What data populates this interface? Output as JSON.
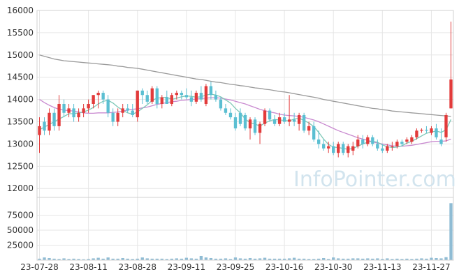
{
  "watermark": "InfoPointer.com",
  "colors": {
    "up": "#e23b3b",
    "down": "#5bbfd2",
    "ma5": "#7cc8b6",
    "ma20": "#c98ad0",
    "ma60": "#9a9a9a",
    "volume": "#8fbcd4",
    "grid": "#e6e6e6",
    "axis_text": "#333333"
  },
  "chart_data": [
    {
      "type": "candlestick",
      "title": "",
      "ylim": [
        11800,
        16000
      ],
      "yticks": [
        12000,
        12500,
        13000,
        13500,
        14000,
        14500,
        15000,
        15500,
        16000
      ],
      "x_tick_labels": [
        "23-07-28",
        "23-08-11",
        "23-08-28",
        "23-09-11",
        "23-09-25",
        "23-10-16",
        "23-10-30",
        "23-11-13",
        "23-11-27"
      ],
      "x_tick_indices": [
        0,
        10,
        20,
        30,
        40,
        50,
        60,
        70,
        80
      ],
      "ohlc": [
        [
          13200,
          13600,
          12800,
          13400
        ],
        [
          13500,
          13600,
          13200,
          13300
        ],
        [
          13300,
          13800,
          13200,
          13700
        ],
        [
          13700,
          13800,
          13300,
          13400
        ],
        [
          13400,
          14100,
          13300,
          13900
        ],
        [
          13900,
          14000,
          13600,
          13700
        ],
        [
          13700,
          13900,
          13600,
          13800
        ],
        [
          13800,
          13900,
          13500,
          13600
        ],
        [
          13600,
          13800,
          13500,
          13700
        ],
        [
          13700,
          13900,
          13600,
          13800
        ],
        [
          13800,
          14000,
          13700,
          13900
        ],
        [
          13900,
          14100,
          13800,
          14100
        ],
        [
          14100,
          14200,
          13800,
          14150
        ],
        [
          14150,
          14200,
          13900,
          14000
        ],
        [
          14000,
          14100,
          13600,
          13700
        ],
        [
          13700,
          13800,
          13400,
          13500
        ],
        [
          13500,
          13800,
          13400,
          13700
        ],
        [
          13700,
          13900,
          13600,
          13800
        ],
        [
          13800,
          13900,
          13700,
          13750
        ],
        [
          13750,
          13900,
          13600,
          13650
        ],
        [
          13600,
          14200,
          13500,
          14200
        ],
        [
          14200,
          14250,
          13900,
          14100
        ],
        [
          14100,
          14200,
          13900,
          13950
        ],
        [
          13950,
          14300,
          13900,
          14250
        ],
        [
          14250,
          14300,
          13800,
          13900
        ],
        [
          13900,
          14100,
          13800,
          14050
        ],
        [
          14050,
          14200,
          13900,
          13900
        ],
        [
          13900,
          14150,
          13850,
          14100
        ],
        [
          14100,
          14200,
          14000,
          14150
        ],
        [
          14150,
          14200,
          14000,
          14100
        ],
        [
          14100,
          14250,
          14000,
          14050
        ],
        [
          14050,
          14200,
          13850,
          13950
        ],
        [
          13950,
          14200,
          13900,
          14150
        ],
        [
          14150,
          14300,
          13950,
          14000
        ],
        [
          13900,
          14350,
          13850,
          14300
        ],
        [
          14300,
          14400,
          14000,
          14100
        ],
        [
          14100,
          14200,
          13950,
          14000
        ],
        [
          14000,
          14050,
          13750,
          13800
        ],
        [
          13800,
          13900,
          13650,
          13700
        ],
        [
          13700,
          13800,
          13550,
          13600
        ],
        [
          13600,
          13700,
          13300,
          13350
        ],
        [
          13700,
          13800,
          13400,
          13450
        ],
        [
          13650,
          13700,
          13300,
          13350
        ],
        [
          13350,
          13600,
          13100,
          13550
        ],
        [
          13550,
          13600,
          13200,
          13250
        ],
        [
          13250,
          13500,
          13000,
          13450
        ],
        [
          13450,
          13800,
          13400,
          13750
        ],
        [
          13750,
          13800,
          13500,
          13550
        ],
        [
          13550,
          13650,
          13400,
          13450
        ],
        [
          13450,
          13700,
          13400,
          13600
        ],
        [
          13600,
          13700,
          13450,
          13500
        ],
        [
          13500,
          14100,
          13400,
          13550
        ],
        [
          13550,
          13700,
          13400,
          13500
        ],
        [
          13450,
          13700,
          13300,
          13650
        ],
        [
          13650,
          13700,
          13250,
          13300
        ],
        [
          13300,
          13500,
          13200,
          13400
        ],
        [
          13400,
          13500,
          13050,
          13100
        ],
        [
          13100,
          13300,
          12900,
          13000
        ],
        [
          13000,
          13100,
          12850,
          12900
        ],
        [
          12900,
          13050,
          12800,
          12950
        ],
        [
          12950,
          13050,
          12750,
          12800
        ],
        [
          12800,
          13050,
          12700,
          13000
        ],
        [
          13000,
          13050,
          12750,
          12800
        ],
        [
          12800,
          13000,
          12700,
          12950
        ],
        [
          12850,
          13050,
          12750,
          12950
        ],
        [
          12950,
          13200,
          12900,
          13100
        ],
        [
          13100,
          13200,
          12900,
          13000
        ],
        [
          13000,
          13200,
          12950,
          13150
        ],
        [
          13150,
          13200,
          12950,
          13000
        ],
        [
          13000,
          13100,
          12850,
          12900
        ],
        [
          12900,
          13000,
          12800,
          12850
        ],
        [
          12850,
          13000,
          12800,
          12950
        ],
        [
          12950,
          13050,
          12850,
          12950
        ],
        [
          12950,
          13100,
          12900,
          13050
        ],
        [
          13050,
          13100,
          12950,
          13000
        ],
        [
          13050,
          13150,
          13000,
          13100
        ],
        [
          13050,
          13200,
          13000,
          13150
        ],
        [
          13150,
          13350,
          13100,
          13300
        ],
        [
          13300,
          13350,
          13250,
          13320
        ],
        [
          13320,
          13400,
          13250,
          13300
        ],
        [
          13250,
          13400,
          13200,
          13350
        ],
        [
          13350,
          13450,
          13100,
          13150
        ],
        [
          13100,
          13350,
          12950,
          13000
        ],
        [
          13150,
          13700,
          13050,
          13650
        ],
        [
          13800,
          15750,
          13800,
          14450
        ]
      ],
      "ma5": [
        13320,
        13380,
        13440,
        13500,
        13560,
        13620,
        13680,
        13680,
        13700,
        13720,
        13760,
        13820,
        13900,
        13960,
        13980,
        13920,
        13830,
        13760,
        13700,
        13670,
        13720,
        13800,
        13880,
        13980,
        14030,
        14040,
        14050,
        14000,
        14030,
        14060,
        14080,
        14070,
        14050,
        14060,
        14100,
        14120,
        14100,
        14060,
        13990,
        13920,
        13800,
        13700,
        13560,
        13480,
        13450,
        13400,
        13470,
        13520,
        13550,
        13540,
        13530,
        13520,
        13560,
        13580,
        13530,
        13470,
        13390,
        13260,
        13110,
        12990,
        12930,
        12920,
        12900,
        12880,
        12900,
        12950,
        13000,
        13040,
        13060,
        13040,
        12980,
        12940,
        12920,
        12930,
        12960,
        13020,
        13060,
        13120,
        13180,
        13240,
        13270,
        13290,
        13260,
        13320,
        13550
      ],
      "ma20": [
        14000,
        13930,
        13870,
        13820,
        13780,
        13760,
        13750,
        13740,
        13720,
        13700,
        13690,
        13690,
        13700,
        13700,
        13700,
        13710,
        13720,
        13740,
        13760,
        13780,
        13790,
        13810,
        13830,
        13860,
        13890,
        13910,
        13930,
        13950,
        13960,
        13980,
        13990,
        14000,
        14010,
        14020,
        14030,
        14040,
        14040,
        14030,
        14010,
        13990,
        13960,
        13930,
        13900,
        13860,
        13820,
        13780,
        13750,
        13720,
        13700,
        13670,
        13650,
        13640,
        13630,
        13620,
        13600,
        13570,
        13540,
        13500,
        13450,
        13400,
        13350,
        13300,
        13260,
        13220,
        13180,
        13140,
        13110,
        13080,
        13050,
        13020,
        13000,
        12980,
        12960,
        12950,
        12950,
        12960,
        12970,
        12990,
        13010,
        13030,
        13050,
        13060,
        13060,
        13070,
        13110
      ],
      "ma60": [
        15000,
        14970,
        14940,
        14910,
        14890,
        14870,
        14860,
        14850,
        14840,
        14830,
        14820,
        14810,
        14800,
        14790,
        14780,
        14770,
        14750,
        14740,
        14720,
        14710,
        14700,
        14680,
        14660,
        14640,
        14620,
        14600,
        14580,
        14560,
        14540,
        14520,
        14500,
        14480,
        14460,
        14450,
        14430,
        14410,
        14390,
        14380,
        14360,
        14340,
        14330,
        14310,
        14300,
        14280,
        14260,
        14250,
        14230,
        14220,
        14200,
        14180,
        14170,
        14150,
        14130,
        14110,
        14090,
        14070,
        14050,
        14030,
        14000,
        13980,
        13960,
        13940,
        13920,
        13900,
        13880,
        13860,
        13840,
        13820,
        13800,
        13790,
        13770,
        13760,
        13740,
        13730,
        13720,
        13710,
        13700,
        13690,
        13680,
        13670,
        13660,
        13650,
        13640,
        13630,
        13620
      ]
    },
    {
      "type": "bar",
      "title": "",
      "ylim": [
        0,
        100000
      ],
      "yticks": [
        25000,
        50000,
        75000
      ],
      "values": [
        2500,
        4500,
        3500,
        2500,
        2000,
        3000,
        2000,
        2500,
        2000,
        1500,
        2000,
        3000,
        4000,
        2500,
        4500,
        2500,
        2500,
        3500,
        2500,
        2000,
        2500,
        4500,
        3000,
        2500,
        2500,
        2500,
        2000,
        2500,
        3000,
        2500,
        4000,
        3000,
        2500,
        7000,
        4500,
        3500,
        2500,
        2500,
        3000,
        2000,
        4500,
        3000,
        2500,
        3500,
        2500,
        3000,
        4000,
        2500,
        2500,
        2500,
        2500,
        3000,
        4000,
        2500,
        2500,
        2000,
        2000,
        2500,
        3500,
        2000,
        4500,
        3000,
        2500,
        2500,
        3000,
        3000,
        2500,
        3000,
        2500,
        3000,
        2000,
        3000,
        2000,
        2500,
        2000,
        2500,
        2000,
        2500,
        3000,
        2500,
        4000,
        3500,
        3000,
        5000,
        95000
      ]
    }
  ]
}
